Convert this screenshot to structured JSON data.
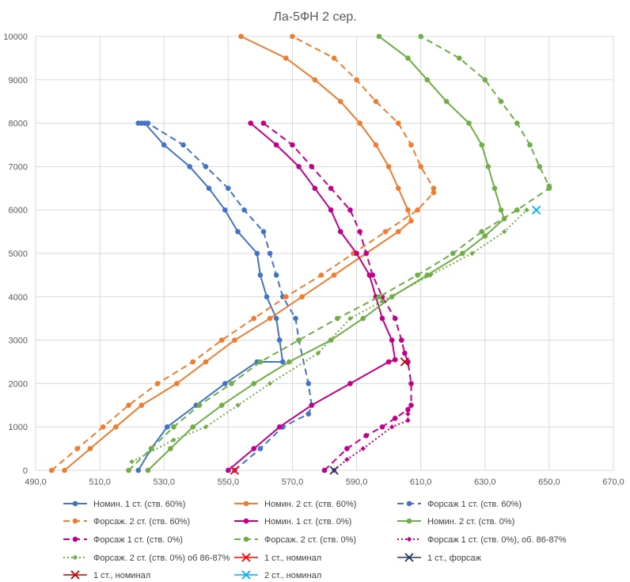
{
  "chart_data": {
    "type": "line",
    "title": "Ла-5ФН 2 сер.",
    "xlabel": "",
    "ylabel": "",
    "xlim": [
      490,
      670
    ],
    "ylim": [
      0,
      10000
    ],
    "x_ticks": [
      "490,0",
      "510,0",
      "530,0",
      "550,0",
      "570,0",
      "590,0",
      "610,0",
      "630,0",
      "650,0",
      "670,0"
    ],
    "y_ticks": [
      "0",
      "1000",
      "2000",
      "3000",
      "4000",
      "5000",
      "6000",
      "7000",
      "8000",
      "9000",
      "10000"
    ],
    "grid": "vertical and horizontal major gridlines",
    "legend_position": "bottom",
    "series": [
      {
        "name": "Номин. 1 ст. (ств. 60%)",
        "color": "#4472C4",
        "dash": "solid",
        "marker": "circle",
        "points": [
          [
            522,
            0
          ],
          [
            526,
            500
          ],
          [
            531,
            1000
          ],
          [
            540,
            1500
          ],
          [
            549,
            2000
          ],
          [
            559,
            2500
          ],
          [
            567,
            2500
          ],
          [
            566,
            3000
          ],
          [
            565,
            3500
          ],
          [
            562,
            4000
          ],
          [
            560,
            4500
          ],
          [
            559,
            5000
          ],
          [
            553,
            5500
          ],
          [
            549,
            6000
          ],
          [
            544,
            6500
          ],
          [
            538,
            7000
          ],
          [
            530,
            7500
          ],
          [
            524,
            8000
          ],
          [
            522,
            8000
          ]
        ]
      },
      {
        "name": "Номин. 2 ст. (ств. 60%)",
        "color": "#ED7D31",
        "dash": "solid",
        "marker": "circle",
        "points": [
          [
            499,
            0
          ],
          [
            507,
            500
          ],
          [
            515,
            1000
          ],
          [
            523,
            1500
          ],
          [
            534,
            2000
          ],
          [
            543,
            2500
          ],
          [
            552,
            3000
          ],
          [
            563,
            3500
          ],
          [
            573,
            4000
          ],
          [
            583,
            4500
          ],
          [
            593,
            5000
          ],
          [
            603,
            5500
          ],
          [
            607,
            5750
          ],
          [
            606,
            6000
          ],
          [
            603,
            6500
          ],
          [
            600,
            7000
          ],
          [
            596,
            7500
          ],
          [
            591,
            8000
          ],
          [
            585,
            8500
          ],
          [
            577,
            9000
          ],
          [
            568,
            9500
          ],
          [
            554,
            10000
          ]
        ]
      },
      {
        "name": "Форсаж 1 ст. (ств. 60%)",
        "color": "#4472C4",
        "dash": "dashed",
        "marker": "circle",
        "points": [
          [
            552,
            0
          ],
          [
            560,
            500
          ],
          [
            567,
            1000
          ],
          [
            575,
            1300
          ],
          [
            576,
            1500
          ],
          [
            575,
            2000
          ],
          [
            572,
            3000
          ],
          [
            571,
            3500
          ],
          [
            567,
            4000
          ],
          [
            565,
            4500
          ],
          [
            563,
            5000
          ],
          [
            561,
            5500
          ],
          [
            555,
            6000
          ],
          [
            550,
            6500
          ],
          [
            543,
            7000
          ],
          [
            536,
            7500
          ],
          [
            525,
            8000
          ],
          [
            523,
            8000
          ]
        ]
      },
      {
        "name": "Форсаж. 2 ст. (ств. 60%)",
        "color": "#ED7D31",
        "dash": "dashed",
        "marker": "circle",
        "points": [
          [
            495,
            0
          ],
          [
            503,
            500
          ],
          [
            511,
            1000
          ],
          [
            519,
            1500
          ],
          [
            528,
            2000
          ],
          [
            539,
            2500
          ],
          [
            548,
            3000
          ],
          [
            558,
            3500
          ],
          [
            568,
            4000
          ],
          [
            579,
            4500
          ],
          [
            589,
            5000
          ],
          [
            599,
            5500
          ],
          [
            609,
            6000
          ],
          [
            614,
            6400
          ],
          [
            614,
            6500
          ],
          [
            610,
            7000
          ],
          [
            607,
            7500
          ],
          [
            603,
            8000
          ],
          [
            596,
            8500
          ],
          [
            590,
            9000
          ],
          [
            583,
            9500
          ],
          [
            570,
            10000
          ]
        ]
      },
      {
        "name": "Номин. 1 ст. (ств. 0%)",
        "color": "#C0008A",
        "dash": "solid",
        "marker": "circle",
        "points": [
          [
            550,
            0
          ],
          [
            558,
            500
          ],
          [
            566,
            1000
          ],
          [
            576,
            1500
          ],
          [
            588,
            2000
          ],
          [
            600,
            2500
          ],
          [
            602,
            2550
          ],
          [
            601,
            3000
          ],
          [
            598,
            3500
          ],
          [
            596,
            4000
          ],
          [
            594,
            4500
          ],
          [
            590,
            5000
          ],
          [
            585,
            5500
          ],
          [
            582,
            6000
          ],
          [
            577,
            6500
          ],
          [
            572,
            7000
          ],
          [
            565,
            7500
          ],
          [
            557,
            8000
          ]
        ]
      },
      {
        "name": "Номин. 2 ст. (ств. 0%)",
        "color": "#70AD47",
        "dash": "solid",
        "marker": "circle",
        "points": [
          [
            525,
            0
          ],
          [
            532,
            500
          ],
          [
            539,
            1000
          ],
          [
            548,
            1500
          ],
          [
            558,
            2000
          ],
          [
            569,
            2500
          ],
          [
            582,
            3000
          ],
          [
            592,
            3500
          ],
          [
            601,
            4000
          ],
          [
            612,
            4500
          ],
          [
            623,
            5000
          ],
          [
            630,
            5400
          ],
          [
            636,
            5800
          ],
          [
            635,
            6000
          ],
          [
            633,
            6500
          ],
          [
            631,
            7000
          ],
          [
            629,
            7500
          ],
          [
            625,
            8000
          ],
          [
            618,
            8500
          ],
          [
            612,
            9000
          ],
          [
            606,
            9500
          ],
          [
            597,
            10000
          ]
        ]
      },
      {
        "name": "Форсаж 1 ст. (ств. 0%)",
        "color": "#C0008A",
        "dash": "dashed",
        "marker": "circle",
        "points": [
          [
            580,
            0
          ],
          [
            587,
            500
          ],
          [
            593,
            800
          ],
          [
            598,
            1000
          ],
          [
            602,
            1200
          ],
          [
            606,
            1400
          ],
          [
            607,
            1500
          ],
          [
            607,
            2000
          ],
          [
            606,
            2500
          ],
          [
            605,
            2700
          ],
          [
            604,
            3000
          ],
          [
            602,
            3500
          ],
          [
            598,
            4000
          ],
          [
            595,
            4500
          ],
          [
            593,
            5000
          ],
          [
            591,
            5500
          ],
          [
            588,
            6000
          ],
          [
            582,
            6500
          ],
          [
            576,
            7000
          ],
          [
            570,
            7500
          ],
          [
            561,
            8000
          ]
        ]
      },
      {
        "name": "Форсаж. 2 ст. (ств. 0%)",
        "color": "#70AD47",
        "dash": "dashed",
        "marker": "circle",
        "points": [
          [
            519,
            0
          ],
          [
            526,
            500
          ],
          [
            533,
            1000
          ],
          [
            541,
            1500
          ],
          [
            551,
            2000
          ],
          [
            560,
            2500
          ],
          [
            572,
            3000
          ],
          [
            584,
            3500
          ],
          [
            597,
            4000
          ],
          [
            609,
            4500
          ],
          [
            620,
            5000
          ],
          [
            629,
            5500
          ],
          [
            640,
            6000
          ],
          [
            650,
            6500
          ],
          [
            650,
            6550
          ],
          [
            647,
            7000
          ],
          [
            644,
            7500
          ],
          [
            640,
            8000
          ],
          [
            635,
            8500
          ],
          [
            630,
            9000
          ],
          [
            622,
            9500
          ],
          [
            610,
            10000
          ]
        ]
      },
      {
        "name": "Форсаж 1 ст. (ств. 0%), об. 86-87%",
        "color": "#C0008A",
        "dash": "dotted",
        "marker": "diamond",
        "points": [
          [
            583,
            0
          ],
          [
            587,
            250
          ],
          [
            592,
            500
          ],
          [
            601,
            1000
          ],
          [
            606,
            1150
          ],
          [
            606,
            1300
          ]
        ]
      },
      {
        "name": "Форсаж. 2 ст. (ств. 0%) об 86-87%",
        "color": "#70AD47",
        "dash": "dotted",
        "marker": "diamond",
        "points": [
          [
            520,
            200
          ],
          [
            533,
            700
          ],
          [
            543,
            1000
          ],
          [
            553,
            1500
          ],
          [
            563,
            2000
          ],
          [
            578,
            2700
          ],
          [
            588,
            3500
          ],
          [
            598,
            3900
          ],
          [
            613,
            4500
          ],
          [
            626,
            5000
          ],
          [
            636,
            5500
          ],
          [
            643,
            6000
          ]
        ]
      },
      {
        "name": "1 ст., номинал",
        "color": "#FF0000",
        "dash": "none",
        "marker": "x",
        "points": [
          [
            552,
            0
          ]
        ]
      },
      {
        "name": "1 ст., форсаж",
        "color": "#1F3864",
        "dash": "none",
        "marker": "x",
        "points": [
          [
            583,
            0
          ]
        ]
      },
      {
        "name": "1 ст., номинал",
        "color": "#C00000",
        "dash": "none",
        "marker": "x",
        "points": [
          [
            605,
            2500
          ]
        ]
      },
      {
        "name": "2 ст., номинал",
        "color": "#00B0F0",
        "dash": "none",
        "marker": "x",
        "points": [
          [
            646,
            6000
          ]
        ]
      }
    ]
  }
}
